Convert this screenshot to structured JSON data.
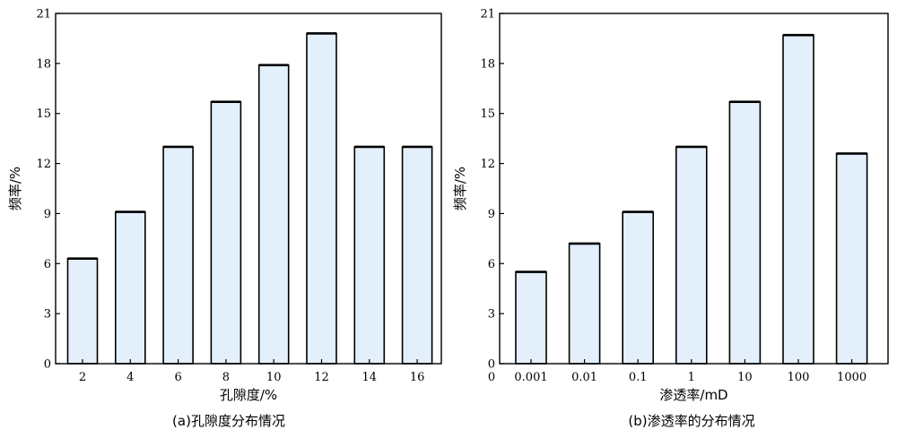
{
  "chart_data": [
    {
      "type": "bar",
      "caption": "(a)孔隙度分布情况",
      "xlabel": "孔隙度/%",
      "ylabel": "频率/%",
      "categories": [
        "2",
        "4",
        "6",
        "8",
        "10",
        "12",
        "14",
        "16"
      ],
      "values": [
        6.3,
        9.1,
        13.0,
        15.7,
        17.9,
        19.8,
        13.0,
        13.0
      ],
      "ylim": [
        0,
        21
      ],
      "yticks": [
        "0",
        "3",
        "6",
        "9",
        "12",
        "15",
        "18",
        "21"
      ],
      "grid": false,
      "bar_color": "#e3f0fb"
    },
    {
      "type": "bar",
      "caption": "(b)渗透率的分布情况",
      "xlabel": "渗透率/mD",
      "ylabel": "频率/%",
      "x_origin_label": "0",
      "categories": [
        "0.001",
        "0.01",
        "0.1",
        "1",
        "10",
        "100",
        "1000"
      ],
      "values": [
        5.5,
        7.2,
        9.1,
        13.0,
        15.7,
        19.7,
        12.6
      ],
      "ylim": [
        0,
        21
      ],
      "yticks": [
        "0",
        "3",
        "6",
        "9",
        "12",
        "15",
        "18",
        "21"
      ],
      "grid": false,
      "bar_color": "#e3f0fb"
    }
  ]
}
